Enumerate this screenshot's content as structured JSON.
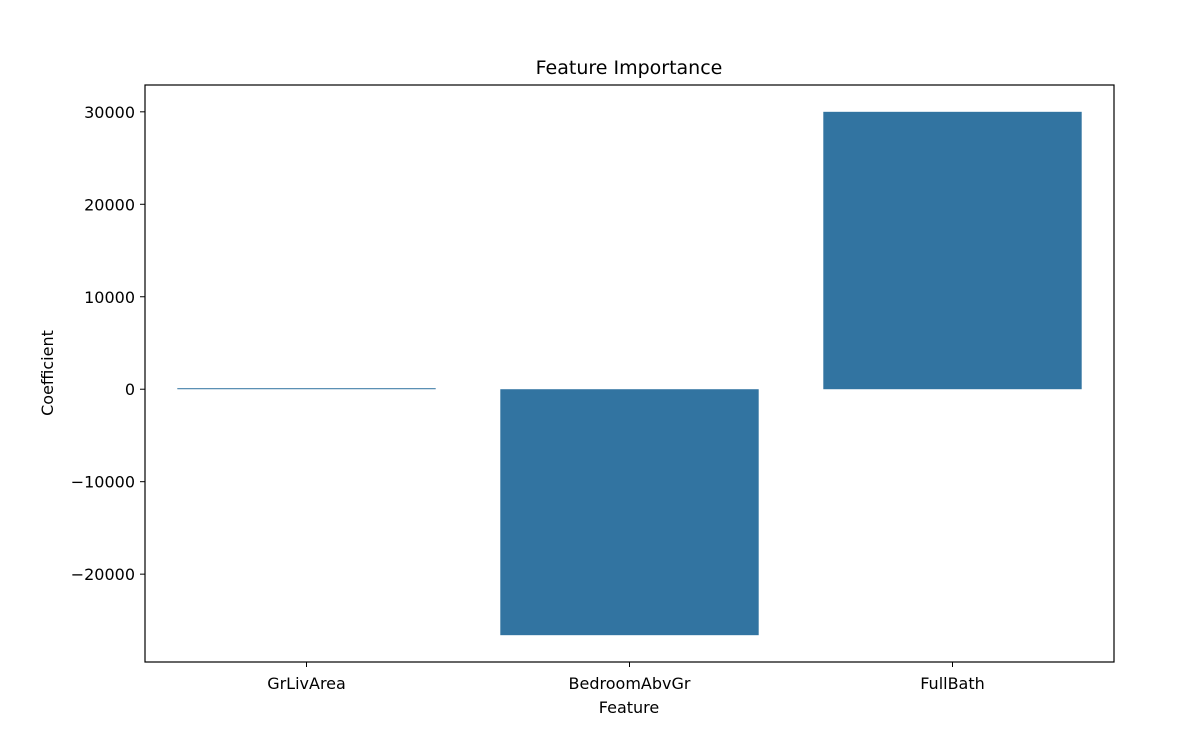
{
  "chart_data": {
    "type": "bar",
    "title": "Feature Importance",
    "xlabel": "Feature",
    "ylabel": "Coefficient",
    "categories": [
      "GrLivArea",
      "BedroomAbvGr",
      "FullBath"
    ],
    "values": [
      110,
      -26600,
      30000
    ],
    "ylim": [
      -29500,
      32900
    ],
    "yticks": [
      -20000,
      -10000,
      0,
      10000,
      20000,
      30000
    ],
    "ytick_labels": [
      "−20000",
      "−10000",
      "0",
      "10000",
      "20000",
      "30000"
    ],
    "grid": false,
    "bar_color": "#3274a1"
  }
}
